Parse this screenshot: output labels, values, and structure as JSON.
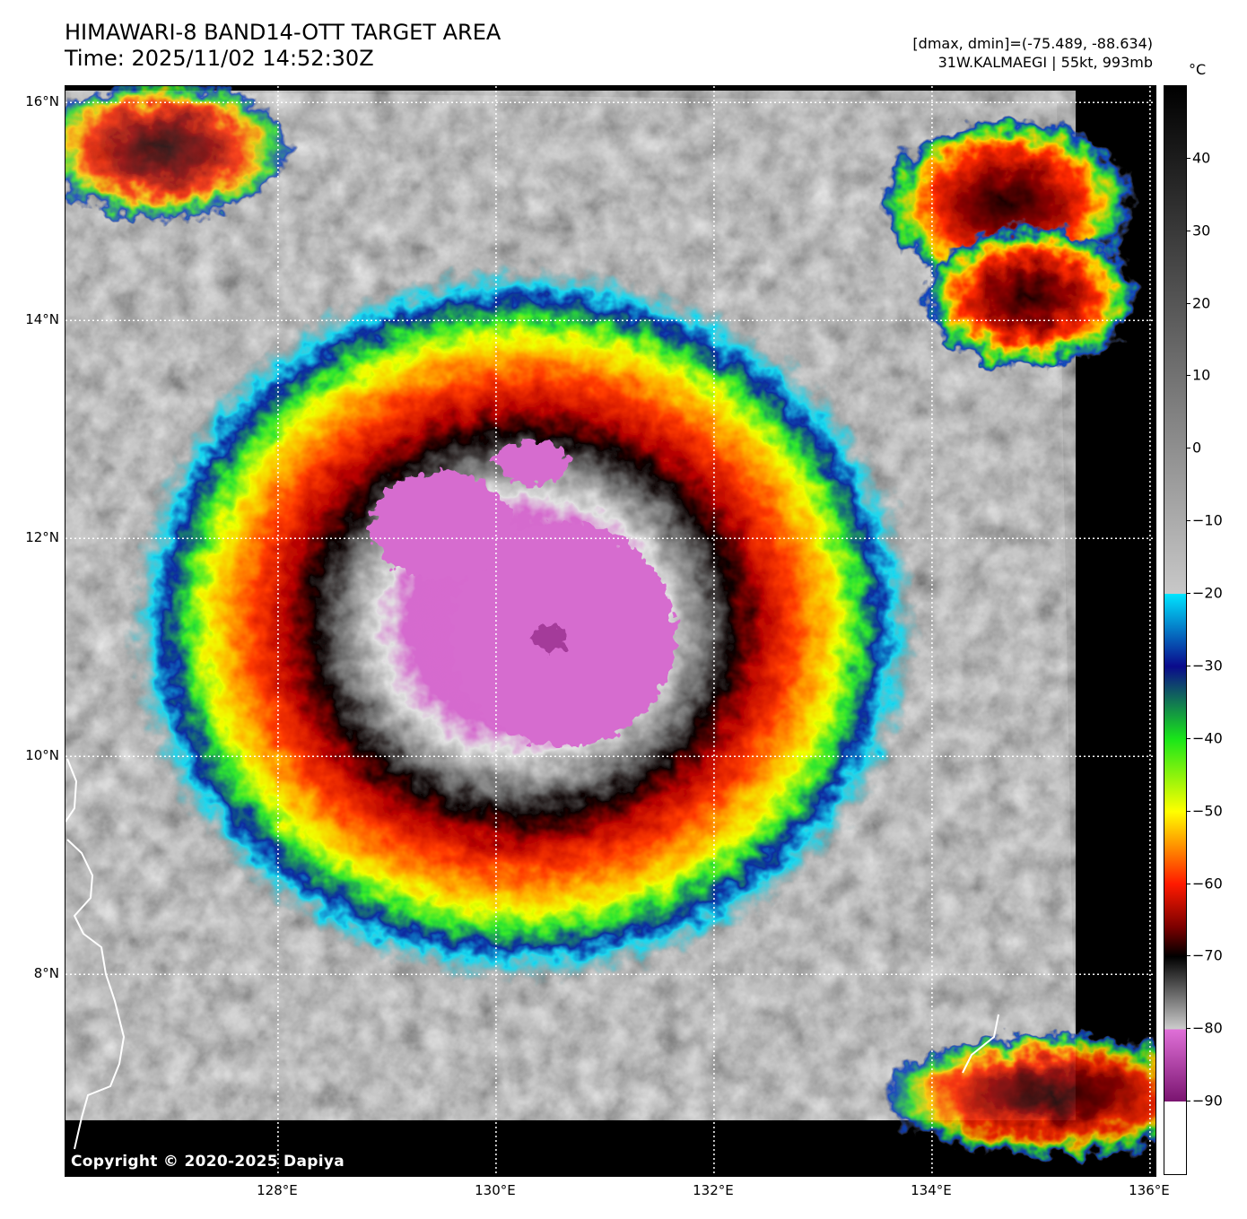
{
  "title": {
    "line1": "HIMAWARI-8 BAND14-OTT TARGET AREA",
    "line2": "Time: 2025/11/02 14:52:30Z"
  },
  "meta": {
    "range": "[dmax, dmin]=(-75.489, -88.634)",
    "storm": "31W.KALMAEGI | 55kt, 993mb"
  },
  "copyright": "Copyright © 2020-2025 Dapiya",
  "map": {
    "lon_range": [
      126.05,
      136.05
    ],
    "lat_range": [
      6.15,
      16.15
    ],
    "lat_ticks": [
      {
        "value": 16,
        "label": "16°N"
      },
      {
        "value": 14,
        "label": "14°N"
      },
      {
        "value": 12,
        "label": "12°N"
      },
      {
        "value": 10,
        "label": "10°N"
      },
      {
        "value": 8,
        "label": "8°N"
      }
    ],
    "lon_ticks": [
      {
        "value": 128,
        "label": "128°E"
      },
      {
        "value": 130,
        "label": "130°E"
      },
      {
        "value": 132,
        "label": "132°E"
      },
      {
        "value": 134,
        "label": "134°E"
      },
      {
        "value": 136,
        "label": "136°E"
      }
    ],
    "grid": "dotted white",
    "storm_center": {
      "lon": 130.6,
      "lat": 11.1
    }
  },
  "colorbar": {
    "unit": "°C",
    "range": [
      -100,
      50
    ],
    "ticks": [
      {
        "value": 40,
        "label": "40"
      },
      {
        "value": 30,
        "label": "30"
      },
      {
        "value": 20,
        "label": "20"
      },
      {
        "value": 10,
        "label": "10"
      },
      {
        "value": 0,
        "label": "0"
      },
      {
        "value": -10,
        "label": "−10"
      },
      {
        "value": -20,
        "label": "−20"
      },
      {
        "value": -30,
        "label": "−30"
      },
      {
        "value": -40,
        "label": "−40"
      },
      {
        "value": -50,
        "label": "−50"
      },
      {
        "value": -60,
        "label": "−60"
      },
      {
        "value": -70,
        "label": "−70"
      },
      {
        "value": -80,
        "label": "−80"
      },
      {
        "value": -90,
        "label": "−90"
      }
    ],
    "stops": [
      {
        "value": 50,
        "color": "#000000"
      },
      {
        "value": -20,
        "color": "#c8c8c8"
      },
      {
        "value": -20.01,
        "color": "#00e5ff"
      },
      {
        "value": -30,
        "color": "#0a0a8c"
      },
      {
        "value": -40,
        "color": "#19e619"
      },
      {
        "value": -50,
        "color": "#ffff00"
      },
      {
        "value": -60,
        "color": "#ff1a00"
      },
      {
        "value": -66,
        "color": "#7a0000"
      },
      {
        "value": -70,
        "color": "#000000"
      },
      {
        "value": -80,
        "color": "#cccccc"
      },
      {
        "value": -80.01,
        "color": "#e070d8"
      },
      {
        "value": -90,
        "color": "#7a1470"
      },
      {
        "value": -90.01,
        "color": "#ffffff"
      },
      {
        "value": -100,
        "color": "#ffffff"
      }
    ]
  }
}
